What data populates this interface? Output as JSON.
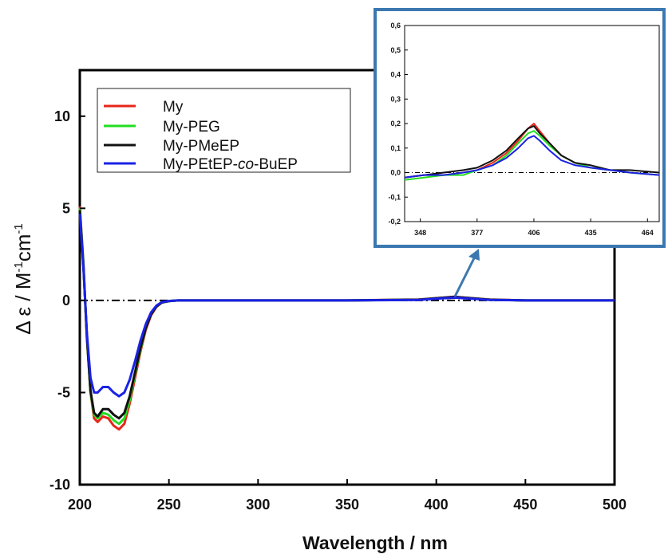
{
  "colors": {
    "My": "#e8251a",
    "My-PEG": "#22dd22",
    "My-PMeEP": "#111111",
    "My-PEtEP-co-BuEP": "#1a22e6",
    "inset_frame": "#3c78b0"
  },
  "chart_data": [
    {
      "type": "line",
      "role": "main",
      "xlabel": "Wavelength / nm",
      "ylabel": {
        "prefix": "Δ ε / M",
        "sup1": "-1",
        "mid": "cm",
        "sup2": "-1"
      },
      "xlim": [
        200,
        500
      ],
      "ylim": [
        -10,
        12.5
      ],
      "xticks": [
        "200",
        "250",
        "300",
        "350",
        "400",
        "450",
        "500"
      ],
      "yticks": [
        "-10",
        "-5",
        "0",
        "5",
        "10"
      ],
      "xtick_values": [
        200,
        250,
        300,
        350,
        400,
        450,
        500
      ],
      "ytick_values": [
        -10,
        -5,
        0,
        5,
        10
      ],
      "zero_line": true,
      "legend": {
        "placement": "top-left",
        "entries": [
          {
            "key": "My",
            "prefix": "My",
            "italic": "",
            "suffix": ""
          },
          {
            "key": "My-PEG",
            "prefix": "My-PEG",
            "italic": "",
            "suffix": ""
          },
          {
            "key": "My-PMeEP",
            "prefix": "My-PMeEP",
            "italic": "",
            "suffix": ""
          },
          {
            "key": "My-PEtEP-co-BuEP",
            "prefix": "My-PEtEP-",
            "italic": "co",
            "suffix": "-BuEP"
          }
        ]
      },
      "series": [
        {
          "key": "My",
          "x": [
            200,
            202,
            204,
            206,
            208,
            210,
            213,
            216,
            219,
            222,
            225,
            228,
            231,
            234,
            237,
            240,
            243,
            246,
            250,
            255,
            260,
            300,
            350,
            390,
            400,
            410,
            420,
            430,
            450,
            500
          ],
          "y": [
            5.1,
            2.0,
            -2.0,
            -5.0,
            -6.4,
            -6.6,
            -6.3,
            -6.4,
            -6.8,
            -7.0,
            -6.7,
            -5.6,
            -4.2,
            -2.8,
            -1.6,
            -0.8,
            -0.35,
            -0.12,
            -0.04,
            0,
            0,
            0,
            0,
            0.05,
            0.12,
            0.2,
            0.12,
            0.05,
            0,
            0
          ]
        },
        {
          "key": "My-PEG",
          "x": [
            200,
            202,
            204,
            206,
            208,
            210,
            213,
            216,
            219,
            222,
            225,
            228,
            231,
            234,
            237,
            240,
            243,
            246,
            250,
            255,
            260,
            300,
            350,
            390,
            400,
            410,
            420,
            430,
            450,
            500
          ],
          "y": [
            5.0,
            2.0,
            -2.0,
            -5.0,
            -6.2,
            -6.4,
            -6.1,
            -6.2,
            -6.5,
            -6.7,
            -6.4,
            -5.4,
            -4.0,
            -2.7,
            -1.5,
            -0.75,
            -0.33,
            -0.11,
            -0.04,
            0,
            0,
            0,
            0,
            0.04,
            0.11,
            0.18,
            0.11,
            0.04,
            0,
            0
          ]
        },
        {
          "key": "My-PMeEP",
          "x": [
            200,
            202,
            204,
            206,
            208,
            210,
            213,
            216,
            219,
            222,
            225,
            228,
            231,
            234,
            237,
            240,
            243,
            246,
            250,
            255,
            260,
            300,
            350,
            390,
            400,
            410,
            420,
            430,
            450,
            500
          ],
          "y": [
            4.9,
            1.9,
            -2.0,
            -4.9,
            -6.1,
            -6.3,
            -5.9,
            -5.9,
            -6.2,
            -6.4,
            -6.1,
            -5.2,
            -3.9,
            -2.6,
            -1.5,
            -0.75,
            -0.33,
            -0.11,
            -0.04,
            0,
            0,
            0,
            0,
            0.04,
            0.12,
            0.19,
            0.12,
            0.04,
            0,
            0
          ]
        },
        {
          "key": "My-PEtEP-co-BuEP",
          "x": [
            200,
            202,
            204,
            206,
            208,
            210,
            213,
            216,
            219,
            222,
            225,
            228,
            231,
            234,
            237,
            240,
            243,
            246,
            250,
            255,
            260,
            300,
            350,
            390,
            400,
            410,
            420,
            430,
            450,
            500
          ],
          "y": [
            4.7,
            1.8,
            -1.8,
            -4.2,
            -5.0,
            -5.0,
            -4.7,
            -4.7,
            -5.0,
            -5.2,
            -5.0,
            -4.3,
            -3.3,
            -2.2,
            -1.3,
            -0.65,
            -0.28,
            -0.09,
            -0.03,
            0,
            0,
            0,
            0,
            0.03,
            0.09,
            0.15,
            0.09,
            0.03,
            0,
            0
          ]
        }
      ]
    },
    {
      "type": "line",
      "role": "inset",
      "xlim": [
        340,
        470
      ],
      "ylim": [
        -0.2,
        0.6
      ],
      "xticks": [
        "348",
        "377",
        "406",
        "435",
        "464"
      ],
      "yticks": [
        "-0,2",
        "-0,1",
        "0,0",
        "0,1",
        "0,2",
        "0,3",
        "0,4",
        "0,5",
        "0,6"
      ],
      "xtick_values": [
        348,
        377,
        406,
        435,
        464
      ],
      "ytick_values": [
        -0.2,
        -0.1,
        0.0,
        0.1,
        0.2,
        0.3,
        0.4,
        0.5,
        0.6
      ],
      "zero_line": true,
      "series": [
        {
          "key": "My",
          "x": [
            340,
            350,
            360,
            370,
            377,
            385,
            392,
            398,
            403,
            406,
            409,
            414,
            420,
            427,
            435,
            445,
            455,
            470
          ],
          "y": [
            -0.02,
            -0.01,
            -0.01,
            0.0,
            0.01,
            0.04,
            0.08,
            0.13,
            0.18,
            0.2,
            0.17,
            0.12,
            0.07,
            0.04,
            0.02,
            0.01,
            0.0,
            -0.01
          ]
        },
        {
          "key": "My-PEG",
          "x": [
            340,
            350,
            360,
            370,
            377,
            385,
            392,
            398,
            403,
            406,
            409,
            414,
            420,
            427,
            435,
            445,
            455,
            470
          ],
          "y": [
            -0.03,
            -0.02,
            -0.01,
            -0.01,
            0.01,
            0.03,
            0.07,
            0.12,
            0.16,
            0.17,
            0.15,
            0.11,
            0.07,
            0.04,
            0.02,
            0.01,
            0.0,
            -0.01
          ]
        },
        {
          "key": "My-PMeEP",
          "x": [
            340,
            350,
            360,
            370,
            377,
            385,
            392,
            398,
            403,
            406,
            409,
            414,
            420,
            427,
            435,
            445,
            455,
            470
          ],
          "y": [
            -0.02,
            -0.01,
            0.0,
            0.01,
            0.02,
            0.05,
            0.09,
            0.14,
            0.18,
            0.19,
            0.16,
            0.12,
            0.07,
            0.04,
            0.03,
            0.01,
            0.01,
            0.0
          ]
        },
        {
          "key": "My-PEtEP-co-BuEP",
          "x": [
            340,
            350,
            360,
            370,
            377,
            385,
            392,
            398,
            403,
            406,
            409,
            414,
            420,
            427,
            435,
            445,
            455,
            470
          ],
          "y": [
            -0.02,
            -0.01,
            -0.01,
            0.0,
            0.01,
            0.03,
            0.06,
            0.1,
            0.14,
            0.15,
            0.13,
            0.09,
            0.05,
            0.03,
            0.02,
            0.01,
            0.0,
            -0.01
          ]
        }
      ]
    }
  ]
}
